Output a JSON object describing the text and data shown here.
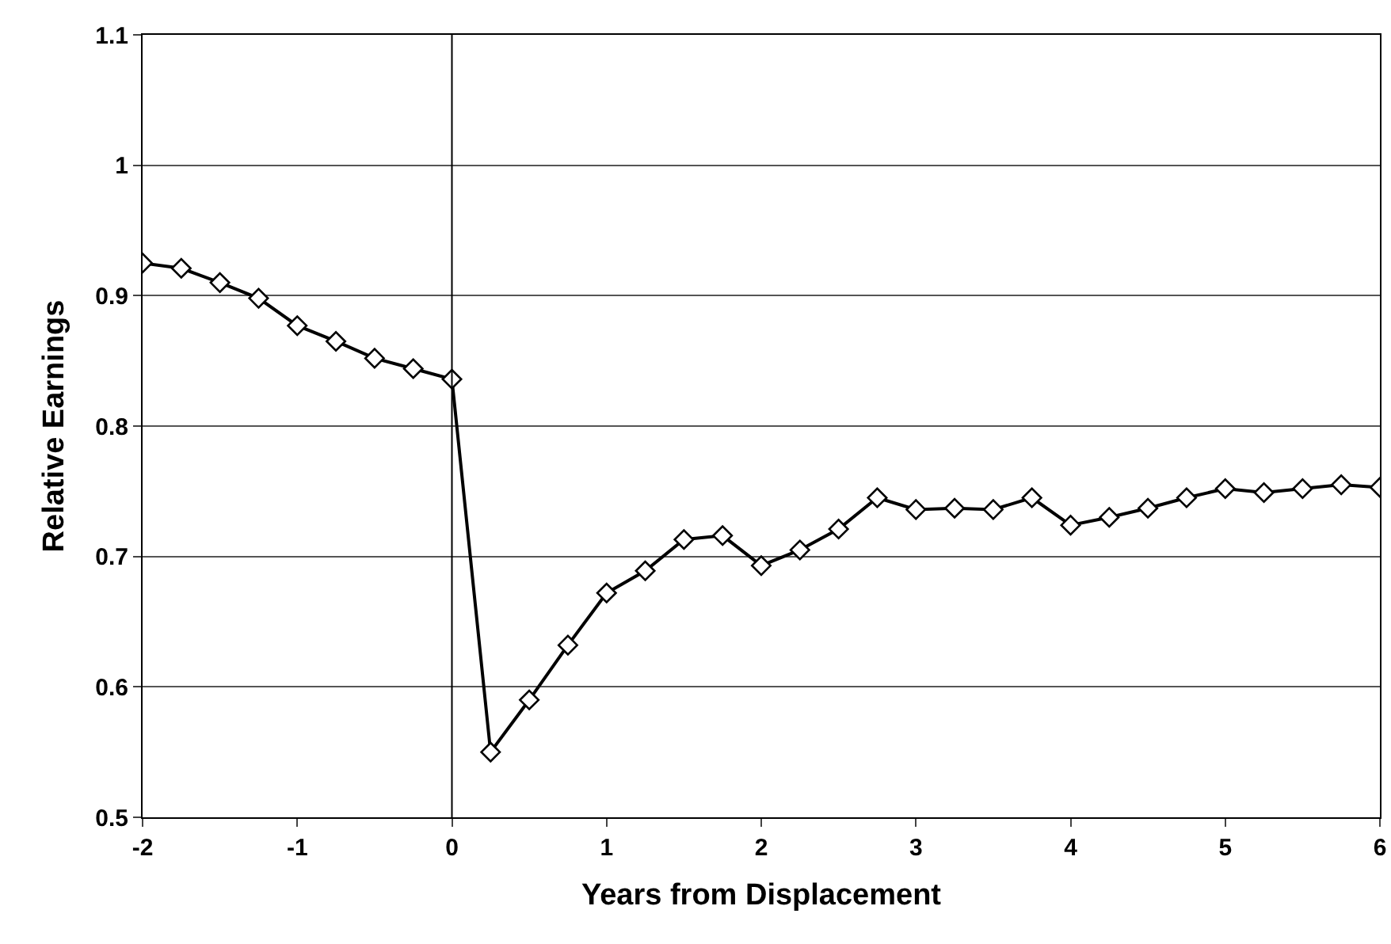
{
  "chart_data": {
    "type": "line",
    "xlabel": "Years from Displacement",
    "ylabel": "Relative Earnings",
    "x": [
      -2,
      -1.75,
      -1.5,
      -1.25,
      -1,
      -0.75,
      -0.5,
      -0.25,
      0,
      0.25,
      0.5,
      0.75,
      1,
      1.25,
      1.5,
      1.75,
      2,
      2.25,
      2.5,
      2.75,
      3,
      3.25,
      3.5,
      3.75,
      4,
      4.25,
      4.5,
      4.75,
      5,
      5.25,
      5.5,
      5.75,
      6
    ],
    "series": [
      {
        "color": "#000000",
        "values": [
          0.925,
          0.921,
          0.91,
          0.898,
          0.877,
          0.865,
          0.852,
          0.844,
          0.836,
          0.55,
          0.59,
          0.632,
          0.672,
          0.689,
          0.713,
          0.716,
          0.693,
          0.705,
          0.721,
          0.745,
          0.736,
          0.737,
          0.736,
          0.745,
          0.724,
          0.73,
          0.737,
          0.745,
          0.752,
          0.749,
          0.752,
          0.755,
          0.753
        ]
      }
    ],
    "xlim": [
      -2,
      6
    ],
    "xticks": [
      -2,
      -1,
      0,
      1,
      2,
      3,
      4,
      5,
      6
    ],
    "ylim": [
      0.5,
      1.1
    ],
    "yticks": [
      0.5,
      0.6,
      0.7,
      0.8,
      0.9,
      1,
      1.1
    ],
    "ref_lines": [
      {
        "axis": "x",
        "value": 0,
        "color": "#000000"
      }
    ],
    "grid": "y",
    "marker": "diamond",
    "line_style": "solid"
  }
}
